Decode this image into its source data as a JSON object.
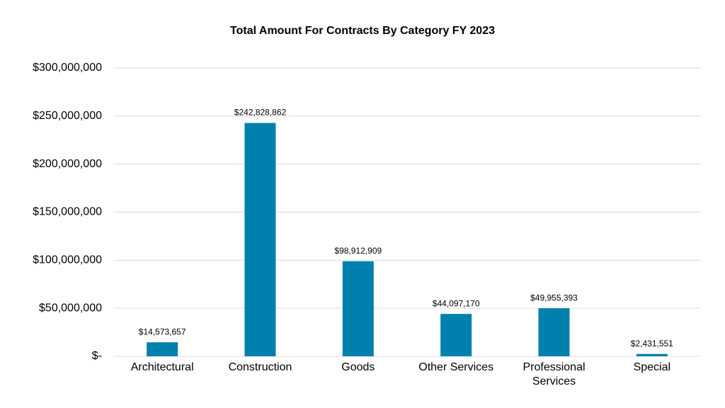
{
  "chart_data": {
    "type": "bar",
    "title": "Total Amount For Contracts By Category FY 2023",
    "categories": [
      "Architectural",
      "Construction",
      "Goods",
      "Other Services",
      "Professional Services",
      "Special"
    ],
    "values": [
      14573657,
      242828862,
      98912909,
      44097170,
      49955393,
      2431551
    ],
    "value_labels": [
      "$14,573,657",
      "$242,828,862",
      "$98,912,909",
      "$44,097,170",
      "$49,955,393",
      "$2,431,551"
    ],
    "color": "#0080ad",
    "ylim": [
      0,
      300000000
    ],
    "yticks": [
      {
        "value": 0,
        "label": "$-"
      },
      {
        "value": 50000000,
        "label": "$50,000,000"
      },
      {
        "value": 100000000,
        "label": "$100,000,000"
      },
      {
        "value": 150000000,
        "label": "$150,000,000"
      },
      {
        "value": 200000000,
        "label": "$200,000,000"
      },
      {
        "value": 250000000,
        "label": "$250,000,000"
      },
      {
        "value": 300000000,
        "label": "$300,000,000"
      }
    ],
    "grid": true
  }
}
